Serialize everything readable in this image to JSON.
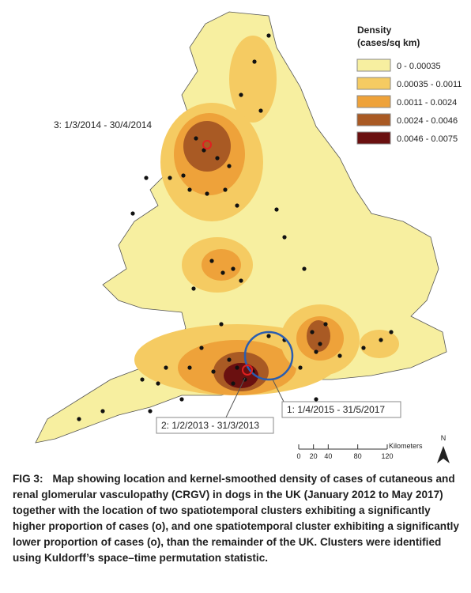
{
  "legend": {
    "title": "Density",
    "subtitle": "(cases/sq km)",
    "items": [
      {
        "label": "0 - 0.00035",
        "color": "#f7efa0"
      },
      {
        "label": "0.00035 - 0.0011",
        "color": "#f5cb62"
      },
      {
        "label": "0.0011 - 0.0024",
        "color": "#eea23a"
      },
      {
        "label": "0.0024 - 0.0046",
        "color": "#a95a24"
      },
      {
        "label": "0.0046 - 0.0075",
        "color": "#6a1010"
      }
    ]
  },
  "clusters": [
    "3: 1/3/2014 - 30/4/2014",
    "2: 1/2/2013 - 31/3/2013",
    "1: 1/4/2015 - 31/5/2017"
  ],
  "scale_bar": {
    "unit": "Kilometers",
    "ticks": [
      0,
      20,
      40,
      80,
      120
    ]
  },
  "north": "N",
  "caption": {
    "label": "FIG 3:",
    "text": "Map showing location and kernel-smoothed density of cases of cutaneous and renal glomerular vasculopathy (CRGV) in dogs in the UK (January 2012 to May 2017) together with the location of two spatiotemporal clusters exhibiting a significantly higher proportion of cases (o), and one spatiotemporal cluster exhibiting a significantly lower proportion of cases (o), than the remainder of the UK. Clusters were identified using Kuldorff’s space–time permutation statistic."
  }
}
